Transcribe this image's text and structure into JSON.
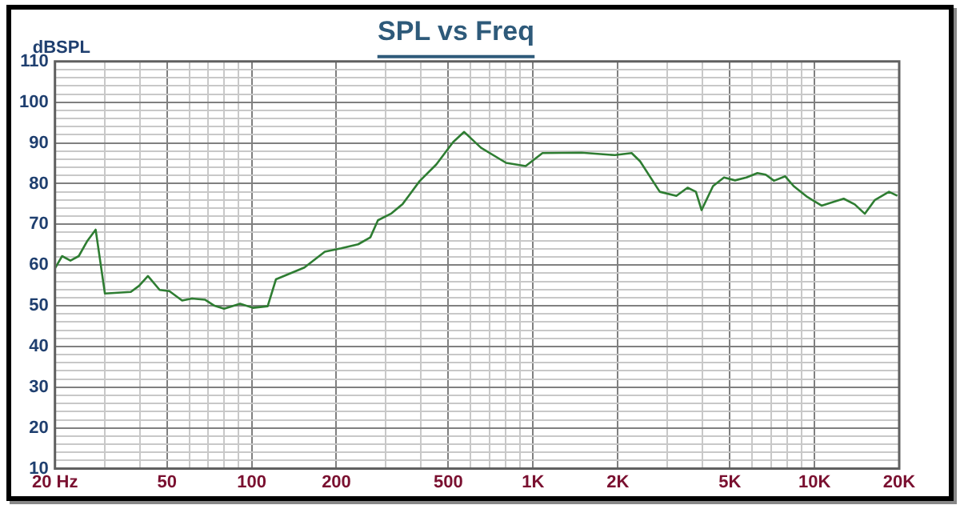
{
  "chart_data": {
    "type": "line",
    "title": "SPL vs Freq",
    "ylabel": "dBSPL",
    "log": "x",
    "grid": true,
    "legend": false,
    "marker": "none",
    "line_style": "solid",
    "xlim": [
      20,
      20000
    ],
    "xticks": [
      {
        "value": 20,
        "label": "20 Hz"
      },
      {
        "value": 30,
        "label": null
      },
      {
        "value": 40,
        "label": null
      },
      {
        "value": 50,
        "label": "50"
      },
      {
        "value": 60,
        "label": null
      },
      {
        "value": 70,
        "label": null
      },
      {
        "value": 80,
        "label": null
      },
      {
        "value": 90,
        "label": null
      },
      {
        "value": 100,
        "label": "100"
      },
      {
        "value": 200,
        "label": "200"
      },
      {
        "value": 300,
        "label": null
      },
      {
        "value": 400,
        "label": null
      },
      {
        "value": 500,
        "label": "500"
      },
      {
        "value": 600,
        "label": null
      },
      {
        "value": 700,
        "label": null
      },
      {
        "value": 800,
        "label": null
      },
      {
        "value": 900,
        "label": null
      },
      {
        "value": 1000,
        "label": "1K"
      },
      {
        "value": 2000,
        "label": "2K"
      },
      {
        "value": 3000,
        "label": null
      },
      {
        "value": 4000,
        "label": null
      },
      {
        "value": 5000,
        "label": "5K"
      },
      {
        "value": 6000,
        "label": null
      },
      {
        "value": 7000,
        "label": null
      },
      {
        "value": 8000,
        "label": null
      },
      {
        "value": 9000,
        "label": null
      },
      {
        "value": 10000,
        "label": "10K"
      },
      {
        "value": 20000,
        "label": "20K"
      }
    ],
    "ylim": [
      10,
      110
    ],
    "yticks": [
      10,
      {
        "value": 12,
        "label": null
      },
      {
        "value": 14,
        "label": null
      },
      {
        "value": 16,
        "label": null
      },
      {
        "value": 18,
        "label": null
      },
      20,
      {
        "value": 22,
        "label": null
      },
      {
        "value": 24,
        "label": null
      },
      {
        "value": 26,
        "label": null
      },
      {
        "value": 28,
        "label": null
      },
      30,
      {
        "value": 32,
        "label": null
      },
      {
        "value": 34,
        "label": null
      },
      {
        "value": 36,
        "label": null
      },
      {
        "value": 38,
        "label": null
      },
      40,
      {
        "value": 42,
        "label": null
      },
      {
        "value": 44,
        "label": null
      },
      {
        "value": 46,
        "label": null
      },
      {
        "value": 48,
        "label": null
      },
      50,
      {
        "value": 52,
        "label": null
      },
      {
        "value": 54,
        "label": null
      },
      {
        "value": 56,
        "label": null
      },
      {
        "value": 58,
        "label": null
      },
      60,
      {
        "value": 62,
        "label": null
      },
      {
        "value": 64,
        "label": null
      },
      {
        "value": 66,
        "label": null
      },
      {
        "value": 68,
        "label": null
      },
      70,
      {
        "value": 72,
        "label": null
      },
      {
        "value": 74,
        "label": null
      },
      {
        "value": 76,
        "label": null
      },
      {
        "value": 78,
        "label": null
      },
      80,
      {
        "value": 82,
        "label": null
      },
      {
        "value": 84,
        "label": null
      },
      {
        "value": 86,
        "label": null
      },
      {
        "value": 88,
        "label": null
      },
      90,
      {
        "value": 92,
        "label": null
      },
      {
        "value": 94,
        "label": null
      },
      {
        "value": 96,
        "label": null
      },
      {
        "value": 98,
        "label": null
      },
      100,
      {
        "value": 102,
        "label": null
      },
      {
        "value": 104,
        "label": null
      },
      {
        "value": 106,
        "label": null
      },
      {
        "value": 108,
        "label": null
      },
      110
    ],
    "series": [
      {
        "color": "#2e7d32",
        "x": [
          20,
          21.2,
          22.7,
          24.3,
          26.1,
          27.9,
          30.1,
          37.2,
          39.8,
          42.8,
          47.1,
          51,
          56.6,
          61.4,
          68.2,
          73.8,
          79.8,
          91,
          101,
          114,
          122,
          154,
          182,
          208,
          239,
          264,
          281,
          314,
          344,
          395,
          453,
          520,
          569,
          653,
          802,
          941,
          1080,
          1486,
          1954,
          2240,
          2400,
          2820,
          3230,
          3540,
          3790,
          3970,
          4360,
          4770,
          5220,
          5730,
          6270,
          6710,
          7180,
          7870,
          8430,
          9440,
          10600,
          12700,
          13900,
          15100,
          16400,
          18400,
          19700
        ],
        "values": [
          59.2,
          62.2,
          61.1,
          62.2,
          66,
          68.7,
          53,
          53.4,
          54.9,
          57.3,
          53.9,
          53.6,
          51.3,
          51.8,
          51.5,
          50,
          49.3,
          50.5,
          49.5,
          49.9,
          56.5,
          59.4,
          63.3,
          64.1,
          65.1,
          66.8,
          71,
          72.7,
          75,
          80.6,
          84.7,
          90.2,
          92.7,
          88.8,
          85.1,
          84.3,
          87.5,
          87.6,
          87,
          87.5,
          85.5,
          78,
          77,
          79,
          78,
          73.5,
          79.4,
          81.5,
          80.8,
          81.5,
          82.6,
          82.2,
          80.7,
          81.8,
          79.4,
          76.7,
          74.6,
          76.3,
          74.9,
          72.6,
          76,
          78,
          77
        ]
      }
    ]
  }
}
